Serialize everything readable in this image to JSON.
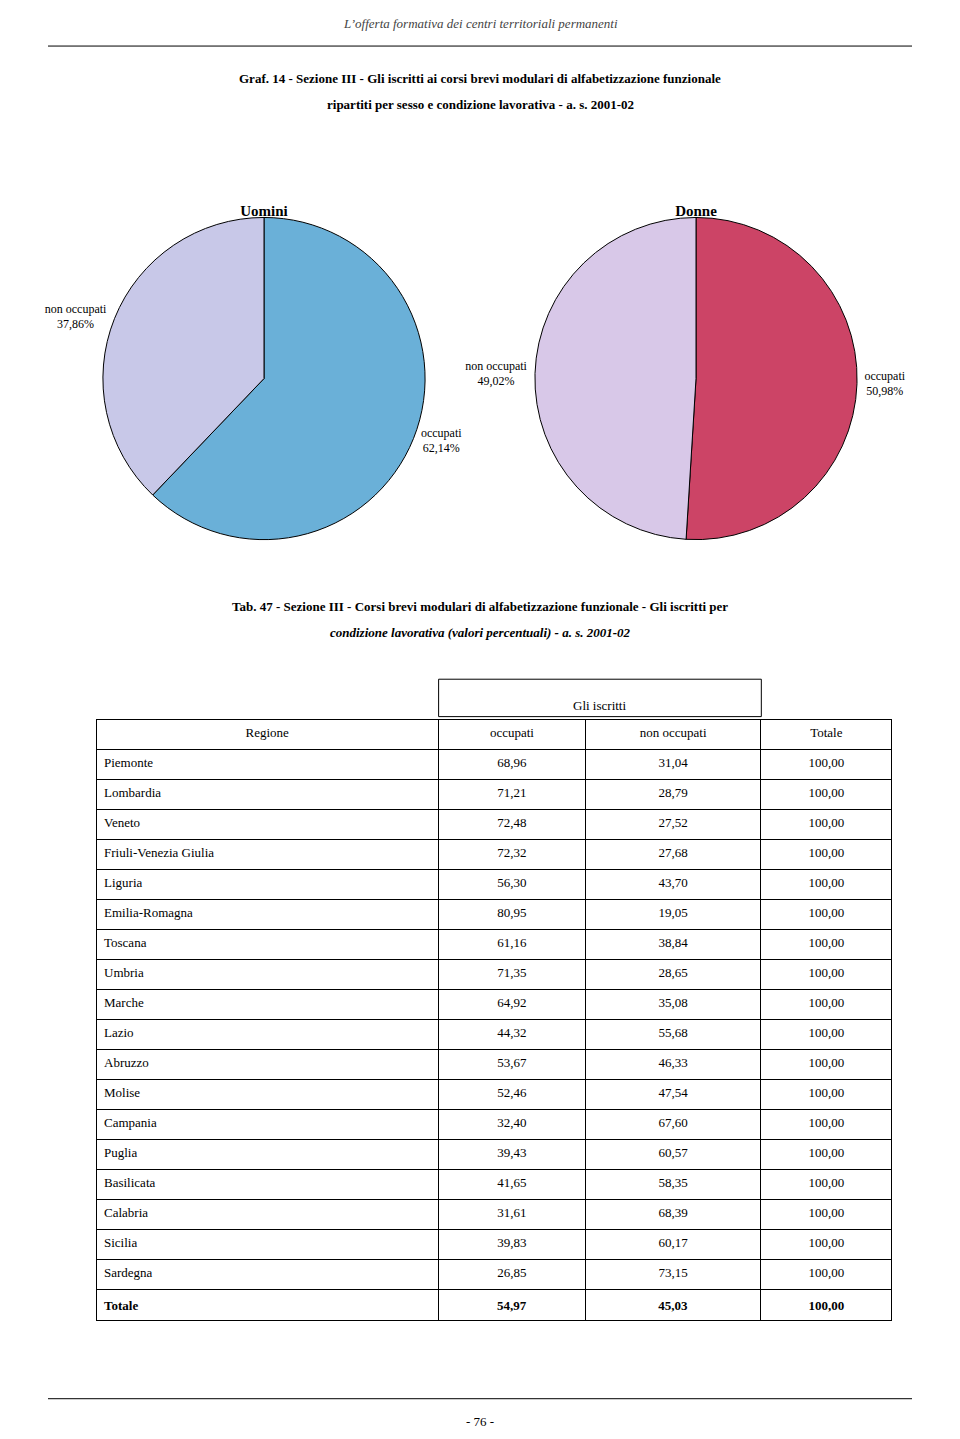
{
  "title": "Graf. 14 - Sezione III - Gli iscritti ai corsi brevi modulari di alfabetizzazione funzionale",
  "subtitle": "ripartiti per sesso e condizione lavorativa - a. s. 2001-02",
  "annotations": [
    "L’offerta formativa dei centri territoriali permanenti",
    "- 76 -"
  ],
  "chart_data": [
    {
      "type": "pie",
      "title": "Uomini",
      "categories": [
        "occupati",
        "non occupati"
      ],
      "values": [
        62.14,
        37.86
      ],
      "value_labels": [
        "62,14%",
        "37,86%"
      ],
      "colors": [
        "#6ab0d8",
        "#c8c8e8"
      ],
      "data_labels": true
    },
    {
      "type": "pie",
      "title": "Donne",
      "categories": [
        "occupati",
        "non occupati"
      ],
      "values": [
        50.98,
        49.02
      ],
      "value_labels": [
        "50,98%",
        "49,02%"
      ],
      "colors": [
        "#cc4466",
        "#d8c8e8"
      ],
      "data_labels": true
    },
    {
      "type": "table",
      "title": "Tab. 47 - Sezione III - Corsi brevi modulari di alfabetizzazione funzionale - Gli iscritti per",
      "subtitle": "condizione lavorativa (valori percentuali) - a. s. 2001-02",
      "xlabel": "Regione",
      "annotations": [
        "Gli iscritti"
      ],
      "categories": [
        "Piemonte",
        "Lombardia",
        "Veneto",
        "Friuli-Venezia Giulia",
        "Liguria",
        "Emilia-Romagna",
        "Toscana",
        "Umbria",
        "Marche",
        "Lazio",
        "Abruzzo",
        "Molise",
        "Campania",
        "Puglia",
        "Basilicata",
        "Calabria",
        "Sicilia",
        "Sardegna",
        "Totale"
      ],
      "series": [
        {
          "name": "occupati",
          "values": [
            68.96,
            71.21,
            72.48,
            72.32,
            56.3,
            80.95,
            61.16,
            71.35,
            64.92,
            44.32,
            53.67,
            52.46,
            32.4,
            39.43,
            41.65,
            31.61,
            39.83,
            26.85,
            54.97
          ],
          "value_labels": [
            "68,96",
            "71,21",
            "72,48",
            "72,32",
            "56,30",
            "80,95",
            "61,16",
            "71,35",
            "64,92",
            "44,32",
            "53,67",
            "52,46",
            "32,40",
            "39,43",
            "41,65",
            "31,61",
            "39,83",
            "26,85",
            "54,97"
          ]
        },
        {
          "name": "non occupati",
          "values": [
            31.04,
            28.79,
            27.52,
            27.68,
            43.7,
            19.05,
            38.84,
            28.65,
            35.08,
            55.68,
            46.33,
            47.54,
            67.6,
            60.57,
            58.35,
            68.39,
            60.17,
            73.15,
            45.03
          ],
          "value_labels": [
            "31,04",
            "28,79",
            "27,52",
            "27,68",
            "43,70",
            "19,05",
            "38,84",
            "28,65",
            "35,08",
            "55,68",
            "46,33",
            "47,54",
            "67,60",
            "60,57",
            "58,35",
            "68,39",
            "60,17",
            "73,15",
            "45,03"
          ]
        },
        {
          "name": "Totale",
          "values": [
            100.0,
            100.0,
            100.0,
            100.0,
            100.0,
            100.0,
            100.0,
            100.0,
            100.0,
            100.0,
            100.0,
            100.0,
            100.0,
            100.0,
            100.0,
            100.0,
            100.0,
            100.0,
            100.0
          ],
          "value_labels": [
            "100,00",
            "100,00",
            "100,00",
            "100,00",
            "100,00",
            "100,00",
            "100,00",
            "100,00",
            "100,00",
            "100,00",
            "100,00",
            "100,00",
            "100,00",
            "100,00",
            "100,00",
            "100,00",
            "100,00",
            "100,00",
            "100,00"
          ]
        }
      ]
    }
  ]
}
